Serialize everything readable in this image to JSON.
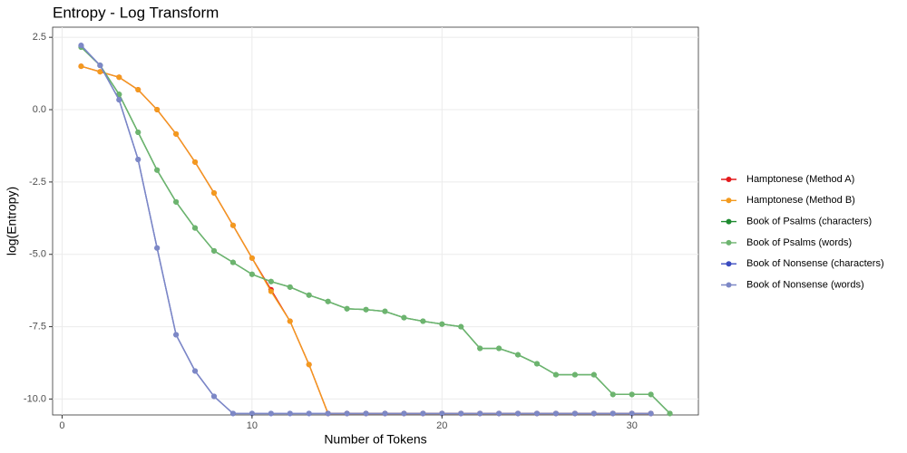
{
  "chart_data": {
    "type": "line",
    "title": "Entropy - Log Transform",
    "x_label": "Number of Tokens",
    "y_label": "log(Entropy)",
    "x": [
      1,
      2,
      3,
      4,
      5,
      6,
      7,
      8,
      9,
      10,
      11,
      12,
      13,
      14,
      15,
      16,
      17,
      18,
      19,
      20,
      21,
      22,
      23,
      24,
      25,
      26,
      27,
      28,
      29,
      30,
      31,
      32
    ],
    "xlim": [
      -0.5,
      33.5
    ],
    "xticks": [
      0,
      10,
      20,
      30
    ],
    "ylim": [
      -10.55,
      2.85
    ],
    "yticks": [
      {
        "value": -10,
        "label": "-10.0"
      },
      {
        "value": -7.5,
        "label": "-7.5"
      },
      {
        "value": -5,
        "label": "-5.0"
      },
      {
        "value": -2.5,
        "label": "-2.5"
      },
      {
        "value": 0,
        "label": "0.0"
      },
      {
        "value": 2.5,
        "label": "2.5"
      }
    ],
    "grid": true,
    "legend": "right",
    "series": [
      {
        "name": "Hamptonese (Method A)",
        "color": "#e41a1c",
        "values": [
          1.5,
          1.31,
          1.12,
          0.69,
          0,
          -0.84,
          -1.81,
          -2.88,
          -4.0,
          -5.13,
          -6.22,
          -7.31,
          -8.81,
          -10.5,
          -10.5,
          -10.5,
          -10.5,
          -10.5,
          -10.5,
          -10.5,
          -10.5,
          -10.5,
          -10.5,
          -10.5,
          -10.5,
          -10.5,
          -10.5,
          -10.5,
          -10.5,
          -10.5,
          -10.5,
          null
        ]
      },
      {
        "name": "Hamptonese (Method B)",
        "color": "#f39a1e",
        "values": [
          1.5,
          1.31,
          1.12,
          0.69,
          0,
          -0.84,
          -1.81,
          -2.88,
          -4.0,
          -5.13,
          -6.28,
          -7.31,
          -8.81,
          -10.5,
          -10.5,
          -10.5,
          -10.5,
          -10.5,
          -10.5,
          -10.5,
          -10.5,
          -10.5,
          -10.5,
          -10.5,
          -10.5,
          -10.5,
          -10.5,
          -10.5,
          -10.5,
          -10.5,
          -10.5,
          null
        ]
      },
      {
        "name": "Book of Psalms (characters)",
        "color": "#1e8a30",
        "values": [
          2.16,
          1.53,
          0.53,
          -0.78,
          -2.09,
          -3.19,
          -4.09,
          -4.88,
          -5.28,
          -5.69,
          -5.94,
          -6.13,
          -6.41,
          -6.63,
          -6.88,
          -6.91,
          -6.97,
          -7.19,
          -7.31,
          -7.41,
          -7.5,
          -8.25,
          -8.25,
          -8.47,
          -8.78,
          -9.16,
          -9.16,
          -9.16,
          -9.84,
          -9.84,
          -9.84,
          -10.5
        ]
      },
      {
        "name": "Book of Psalms (words)",
        "color": "#6db46f",
        "values": [
          2.16,
          1.53,
          0.53,
          -0.78,
          -2.09,
          -3.19,
          -4.09,
          -4.88,
          -5.28,
          -5.69,
          -5.94,
          -6.13,
          -6.41,
          -6.63,
          -6.88,
          -6.91,
          -6.97,
          -7.19,
          -7.31,
          -7.41,
          -7.5,
          -8.25,
          -8.25,
          -8.47,
          -8.78,
          -9.16,
          -9.16,
          -9.16,
          -9.84,
          -9.84,
          -9.84,
          -10.5
        ]
      },
      {
        "name": "Book of Nonsense (characters)",
        "color": "#3b4cc0",
        "values": [
          2.22,
          1.53,
          0.34,
          -1.72,
          -4.78,
          -7.78,
          -9.03,
          -9.91,
          -10.5,
          -10.5,
          -10.5,
          -10.5,
          -10.5,
          -10.5,
          -10.5,
          -10.5,
          -10.5,
          -10.5,
          -10.5,
          -10.5,
          -10.5,
          -10.5,
          -10.5,
          -10.5,
          -10.5,
          -10.5,
          -10.5,
          -10.5,
          -10.5,
          -10.5,
          -10.5,
          null
        ]
      },
      {
        "name": "Book of Nonsense (words)",
        "color": "#7d88c6",
        "values": [
          2.22,
          1.53,
          0.34,
          -1.72,
          -4.78,
          -7.78,
          -9.03,
          -9.91,
          -10.5,
          -10.5,
          -10.5,
          -10.5,
          -10.5,
          -10.5,
          -10.5,
          -10.5,
          -10.5,
          -10.5,
          -10.5,
          -10.5,
          -10.5,
          -10.5,
          -10.5,
          -10.5,
          -10.5,
          -10.5,
          -10.5,
          -10.5,
          -10.5,
          -10.5,
          -10.5,
          null
        ]
      }
    ]
  }
}
